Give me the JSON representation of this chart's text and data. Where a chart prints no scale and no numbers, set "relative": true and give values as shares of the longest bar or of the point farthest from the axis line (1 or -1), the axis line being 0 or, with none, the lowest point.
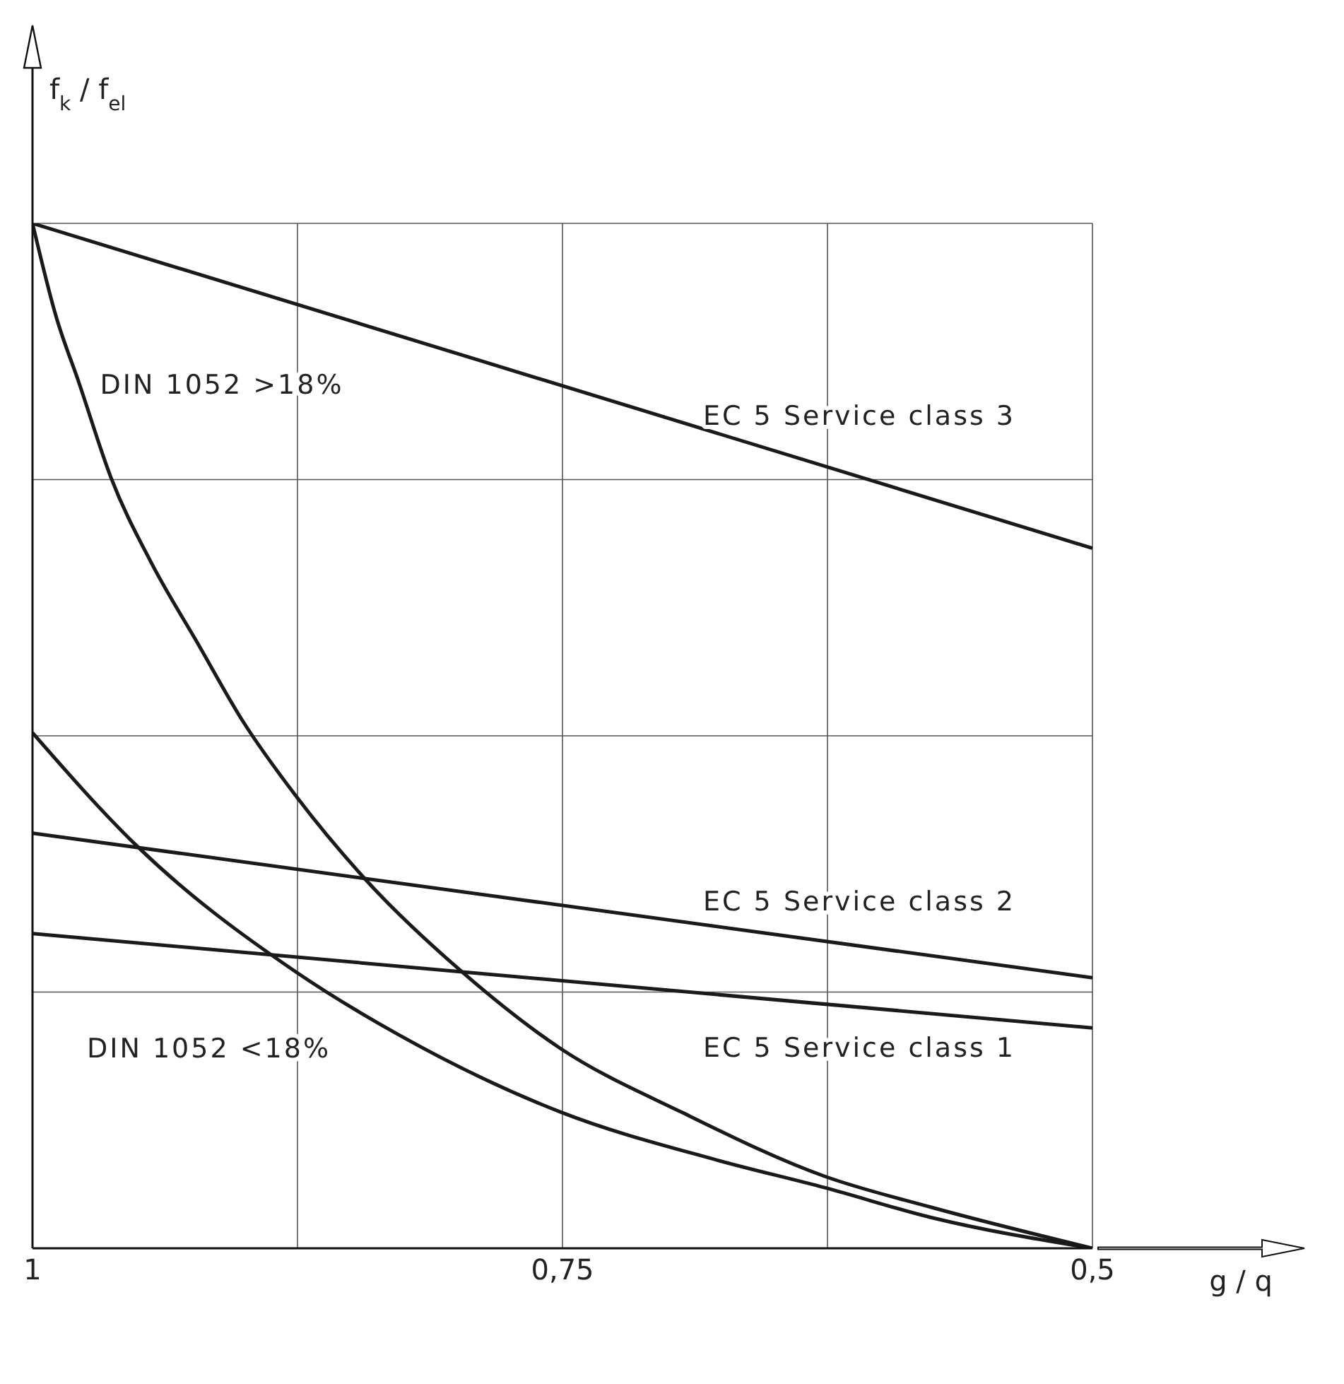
{
  "chart_data": {
    "type": "line",
    "xlabel": "g / q",
    "ylabel": "f$_{k}$ / f$_{el}$",
    "relative": true,
    "xlim": [
      1,
      0.5
    ],
    "xticks": [
      1,
      {
        "value": 0.875,
        "label": null
      },
      {
        "value": 0.75,
        "label": "0,75"
      },
      {
        "value": 0.625,
        "label": null
      },
      {
        "value": 0.5,
        "label": "0,5"
      }
    ],
    "grid": true,
    "marker": "none",
    "line_style": "solid",
    "series": [
      {
        "name": "EC 5 Service class 3",
        "color": "#1a1a1a",
        "x": [
          1,
          0.5
        ],
        "values": [
          1,
          0.683
        ]
      },
      {
        "name": "EC 5 Service class 2",
        "color": "#1a1a1a",
        "x": [
          1,
          0.5
        ],
        "values": [
          0.405,
          0.264
        ]
      },
      {
        "name": "EC 5 Service class 1",
        "color": "#1a1a1a",
        "x": [
          1,
          0.5
        ],
        "values": [
          0.307,
          0.215
        ]
      },
      {
        "name": "DIN 1052 >18%",
        "color": "#1a1a1a",
        "x": [
          1,
          0.989,
          0.978,
          0.963,
          0.944,
          0.922,
          0.901,
          0.876,
          0.843,
          0.797,
          0.751,
          0.693,
          0.626,
          0.576,
          0.5
        ],
        "values": [
          1,
          0.91,
          0.844,
          0.752,
          0.669,
          0.59,
          0.515,
          0.442,
          0.36,
          0.269,
          0.195,
          0.132,
          0.07,
          0.04,
          0
        ]
      },
      {
        "name": "DIN 1052 <18%",
        "color": "#1a1a1a",
        "x": [
          1,
          0.951,
          0.876,
          0.827,
          0.751,
          0.677,
          0.626,
          0.576,
          0.5
        ],
        "values": [
          0.503,
          0.393,
          0.27,
          0.208,
          0.133,
          0.086,
          0.059,
          0.03,
          0
        ]
      }
    ]
  }
}
